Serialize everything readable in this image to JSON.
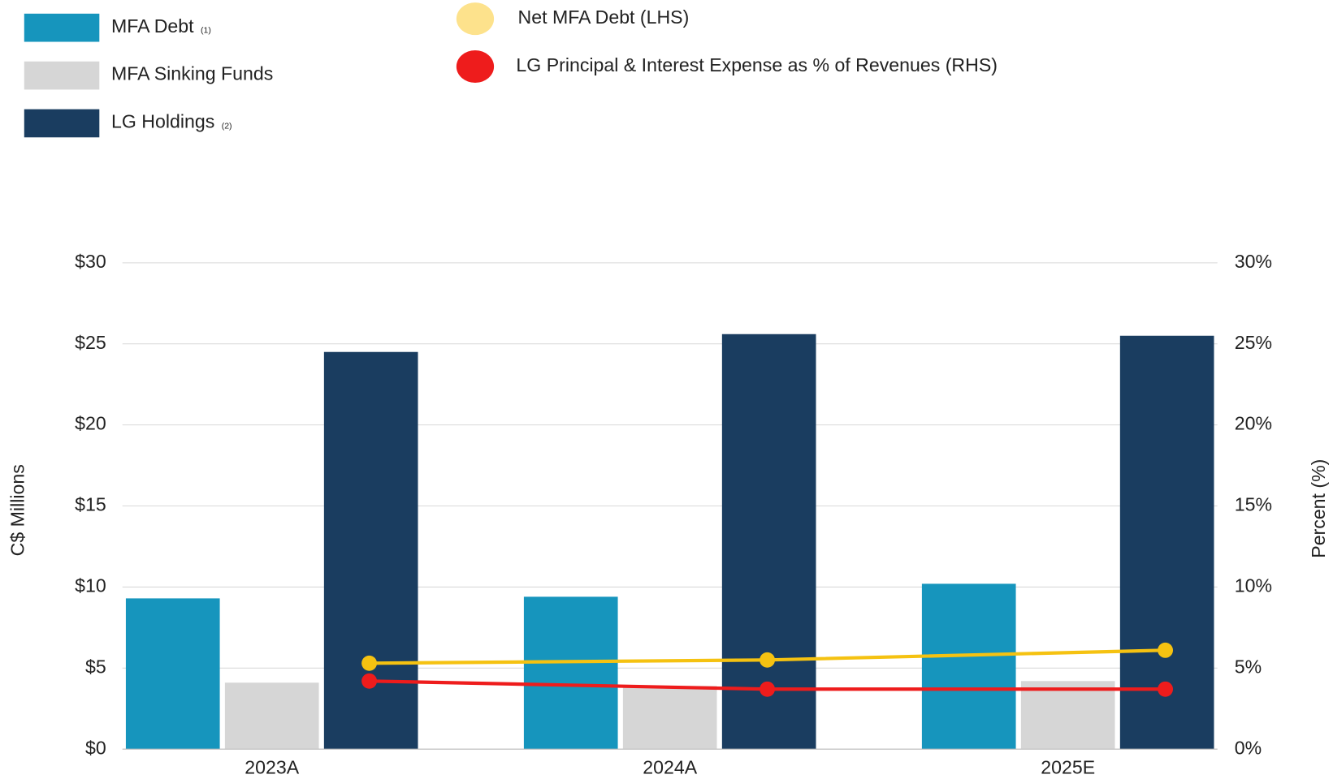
{
  "chart_data": {
    "type": "bar",
    "categories": [
      "2023A",
      "2024A",
      "2025E"
    ],
    "y_label": "C$ Millions",
    "y2_label": "Percent (%)",
    "ylim": [
      0,
      30
    ],
    "yticks": [
      {
        "value": 0,
        "label": "$0"
      },
      {
        "value": 5,
        "label": "$5"
      },
      {
        "value": 10,
        "label": "$10"
      },
      {
        "value": 15,
        "label": "$15"
      },
      {
        "value": 20,
        "label": "$20"
      },
      {
        "value": 25,
        "label": "$25"
      },
      {
        "value": 30,
        "label": "$30"
      }
    ],
    "y2lim": [
      0,
      30
    ],
    "y2ticks": [
      {
        "value": 0,
        "label": "0%"
      },
      {
        "value": 5,
        "label": "5%"
      },
      {
        "value": 10,
        "label": "10%"
      },
      {
        "value": 15,
        "label": "15%"
      },
      {
        "value": 20,
        "label": "20%"
      },
      {
        "value": 25,
        "label": "25%"
      },
      {
        "value": 30,
        "label": "30%"
      }
    ],
    "grid": true,
    "series": [
      {
        "name": "MFA Debt",
        "note": "(1)",
        "type": "bar",
        "color": "#1695bd",
        "values": [
          9.3,
          9.4,
          10.2
        ]
      },
      {
        "name": "MFA Sinking Funds",
        "type": "bar",
        "color": "#d6d6d6",
        "values": [
          4.1,
          3.9,
          4.2
        ]
      },
      {
        "name": "LG Holdings",
        "note": "(2)",
        "type": "bar",
        "color": "#1a3d60",
        "values": [
          24.5,
          25.6,
          25.5
        ]
      },
      {
        "name": "Net MFA Debt (LHS)",
        "type": "line",
        "color": "#f5c211",
        "legend_color": "#fde28c",
        "values": [
          5.3,
          5.5,
          6.1
        ]
      },
      {
        "name": "LG Principal & Interest Expense as % of Revenues (RHS)",
        "type": "line",
        "axis": "y2",
        "color": "#ee1c1c",
        "legend_color": "#ee1c1c",
        "values": [
          4.2,
          3.7,
          3.7
        ]
      }
    ]
  }
}
